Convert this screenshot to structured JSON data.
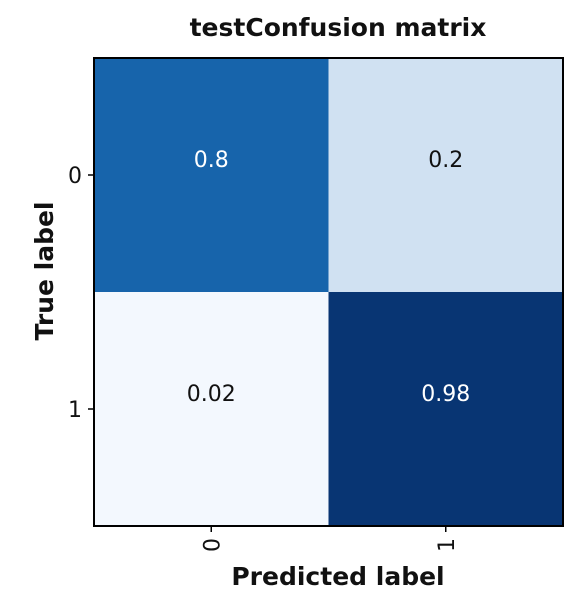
{
  "chart_data": {
    "type": "heatmap",
    "title": "testConfusion matrix",
    "xlabel": "Predicted label",
    "ylabel": "True label",
    "x_categories": [
      "0",
      "1"
    ],
    "y_categories": [
      "0",
      "1"
    ],
    "values": [
      [
        0.8,
        0.2
      ],
      [
        0.02,
        0.98
      ]
    ],
    "value_labels": [
      [
        "0.8",
        "0.2"
      ],
      [
        "0.02",
        "0.98"
      ]
    ],
    "colormap": "Blues",
    "color_range": [
      0,
      1
    ],
    "x_tick_rotation": "vertical",
    "grid": false
  }
}
